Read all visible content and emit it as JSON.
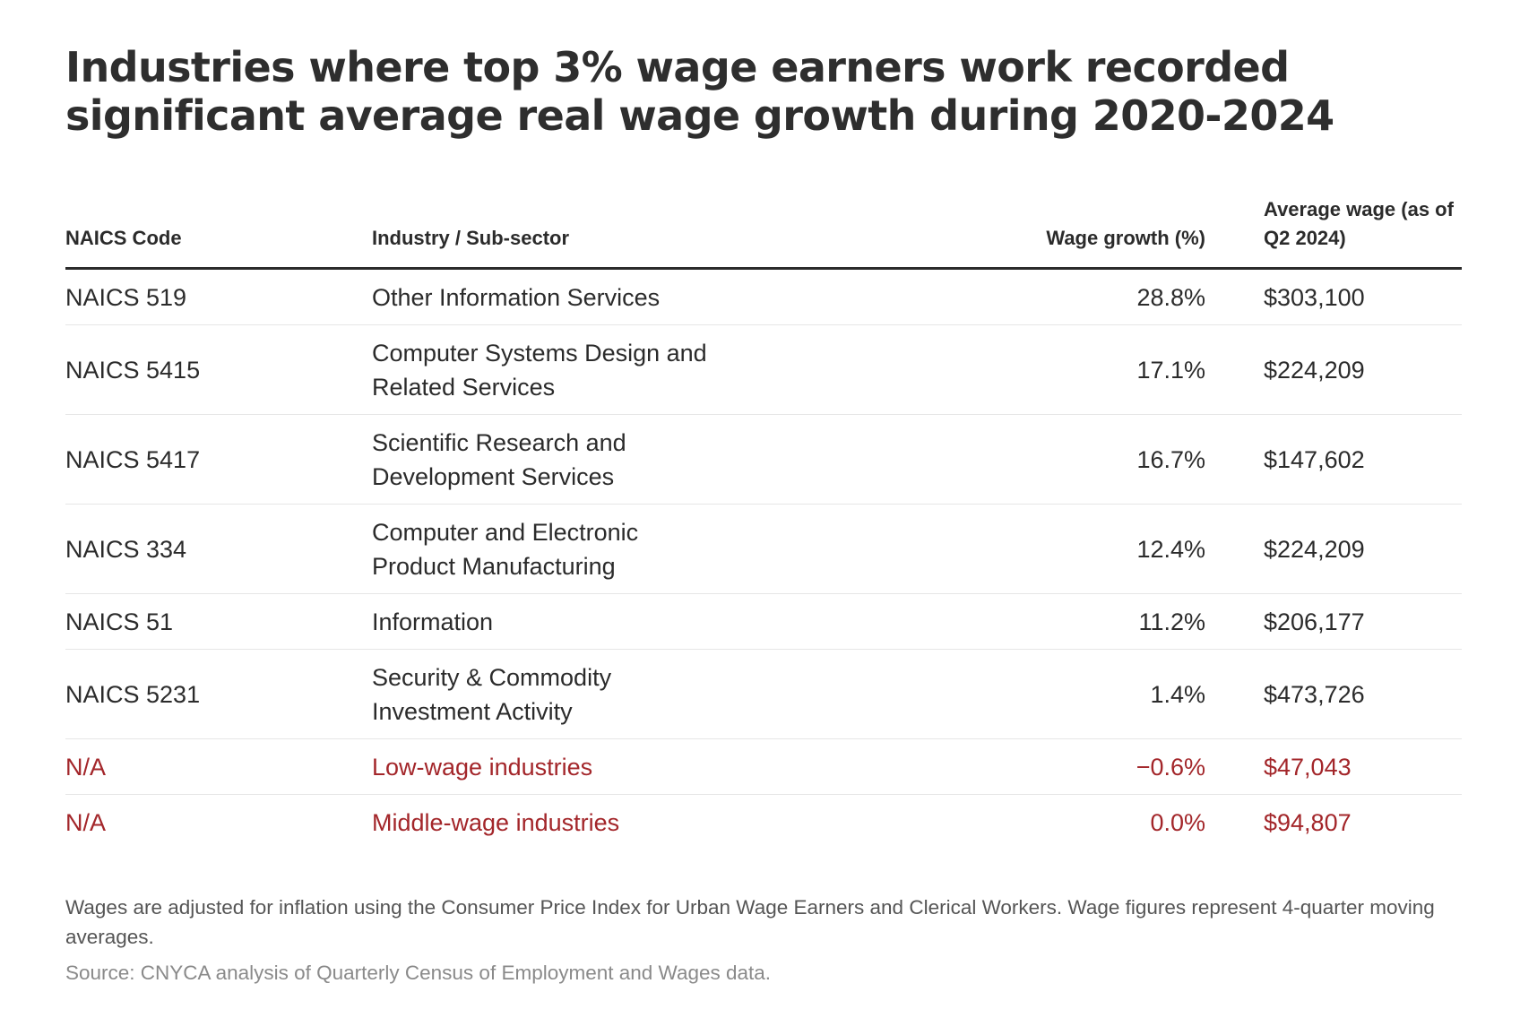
{
  "title": "Industries where top 3% wage earners work recorded significant average real wage growth during 2020-2024",
  "colors": {
    "text": "#2b2b2b",
    "highlight": "#a3262a",
    "footnote": "#555555",
    "source": "#8a8a8a"
  },
  "chart_data": {
    "type": "table",
    "columns": [
      "NAICS Code",
      "Industry / Sub-sector",
      "Wage growth (%)",
      "Average wage (as of Q2 2024)"
    ],
    "rows": [
      {
        "code": "NAICS 519",
        "industry": [
          "Other Information Services"
        ],
        "growth": "28.8%",
        "wage": "$303,100",
        "highlight": false
      },
      {
        "code": "NAICS 5415",
        "industry": [
          "Computer Systems Design and",
          "Related Services"
        ],
        "growth": "17.1%",
        "wage": "$224,209",
        "highlight": false
      },
      {
        "code": "NAICS 5417",
        "industry": [
          "Scientific Research and",
          "Development Services"
        ],
        "growth": "16.7%",
        "wage": "$147,602",
        "highlight": false
      },
      {
        "code": "NAICS 334",
        "industry": [
          "Computer and Electronic",
          "Product Manufacturing"
        ],
        "growth": "12.4%",
        "wage": "$224,209",
        "highlight": false
      },
      {
        "code": "NAICS 51",
        "industry": [
          "Information"
        ],
        "growth": "11.2%",
        "wage": "$206,177",
        "highlight": false
      },
      {
        "code": "NAICS 5231",
        "industry": [
          "Security & Commodity",
          "Investment Activity"
        ],
        "growth": "1.4%",
        "wage": "$473,726",
        "highlight": false
      },
      {
        "code": "N/A",
        "industry": [
          "Low-wage industries"
        ],
        "growth": "−0.6%",
        "wage": "$47,043",
        "highlight": true
      },
      {
        "code": "N/A",
        "industry": [
          "Middle-wage industries"
        ],
        "growth": "0.0%",
        "wage": "$94,807",
        "highlight": true
      }
    ]
  },
  "footnote": "Wages are adjusted for inflation using the Consumer Price Index for Urban Wage Earners and Clerical Workers. Wage figures represent 4-quarter moving averages.",
  "source": "Source: CNYCA analysis of Quarterly Census of Employment and Wages data."
}
